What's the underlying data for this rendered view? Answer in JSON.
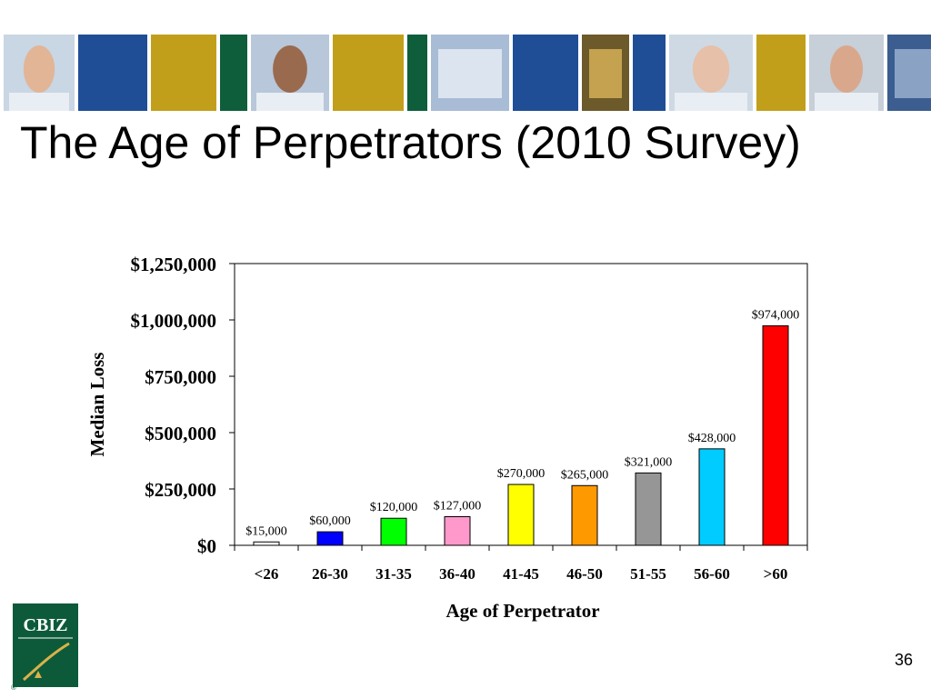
{
  "slide": {
    "title": "The Age of Perpetrators (2010 Survey)",
    "page_number": "36",
    "logo_text": "CBIZ",
    "registered_mark": "®"
  },
  "banner": {
    "tiles": [
      {
        "kind": "photo",
        "icon": "man-portrait"
      },
      {
        "kind": "block",
        "color": "#1f4e96"
      },
      {
        "kind": "block",
        "color": "#c29f1a"
      },
      {
        "kind": "block",
        "color": "#0e5e3c"
      },
      {
        "kind": "photo",
        "icon": "woman-portrait"
      },
      {
        "kind": "block",
        "color": "#c29f1a"
      },
      {
        "kind": "block",
        "color": "#0e5e3c"
      },
      {
        "kind": "photo",
        "icon": "pen-document"
      },
      {
        "kind": "block",
        "color": "#1f4e96"
      },
      {
        "kind": "photo",
        "icon": "coins"
      },
      {
        "kind": "block",
        "color": "#1f4e96"
      },
      {
        "kind": "photo",
        "icon": "older-man-portrait"
      },
      {
        "kind": "block",
        "color": "#c29f1a"
      },
      {
        "kind": "photo",
        "icon": "woman-portrait-2"
      },
      {
        "kind": "photo",
        "icon": "dollar-sign"
      },
      {
        "kind": "block",
        "color": "#1f4e96"
      },
      {
        "kind": "photo",
        "icon": "tax-form"
      }
    ]
  },
  "chart_data": {
    "type": "bar",
    "title": "",
    "xlabel": "Age of Perpetrator",
    "ylabel": "Median Loss",
    "categories": [
      "<26",
      "26-30",
      "31-35",
      "36-40",
      "41-45",
      "46-50",
      "51-55",
      "56-60",
      ">60"
    ],
    "values": [
      15000,
      60000,
      120000,
      127000,
      270000,
      265000,
      321000,
      428000,
      974000
    ],
    "data_labels": [
      "$15,000",
      "$60,000",
      "$120,000",
      "$127,000",
      "$270,000",
      "$265,000",
      "$321,000",
      "$428,000",
      "$974,000"
    ],
    "bar_colors": [
      "#ffffff",
      "#0000ff",
      "#00ff00",
      "#ff99cc",
      "#ffff00",
      "#ff9900",
      "#969696",
      "#00ccff",
      "#ff0000"
    ],
    "ylim": [
      0,
      1250000
    ],
    "yticks": [
      0,
      250000,
      500000,
      750000,
      1000000,
      1250000
    ],
    "ytick_labels": [
      "$0",
      "$250,000",
      "$500,000",
      "$750,000",
      "$1,000,000",
      "$1,250,000"
    ],
    "grid": false,
    "legend": "none"
  }
}
